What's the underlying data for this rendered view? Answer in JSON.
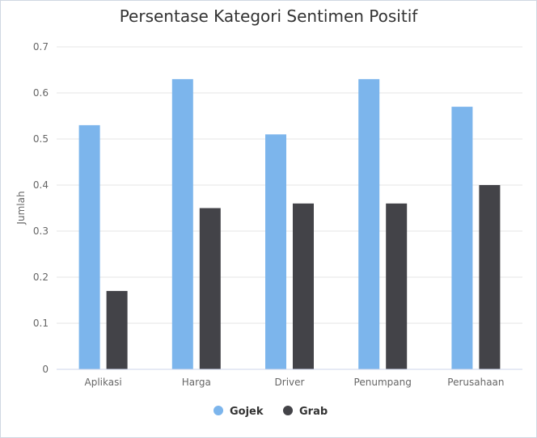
{
  "chart_data": {
    "type": "bar",
    "title": "Persentase Kategori Sentimen Positif",
    "xlabel": "",
    "ylabel": "Jumlah",
    "ylim": [
      0,
      0.7
    ],
    "yticks": [
      "0",
      "0.1",
      "0.2",
      "0.3",
      "0.4",
      "0.5",
      "0.6",
      "0.7"
    ],
    "grid": true,
    "legend": "bottom-center",
    "categories": [
      "Aplikasi",
      "Harga",
      "Driver",
      "Penumpang",
      "Perusahaan"
    ],
    "series": [
      {
        "name": "Gojek",
        "color": "#7cb5ec",
        "values": [
          0.53,
          0.63,
          0.51,
          0.63,
          0.57
        ]
      },
      {
        "name": "Grab",
        "color": "#434348",
        "values": [
          0.17,
          0.35,
          0.36,
          0.36,
          0.4
        ]
      }
    ]
  }
}
